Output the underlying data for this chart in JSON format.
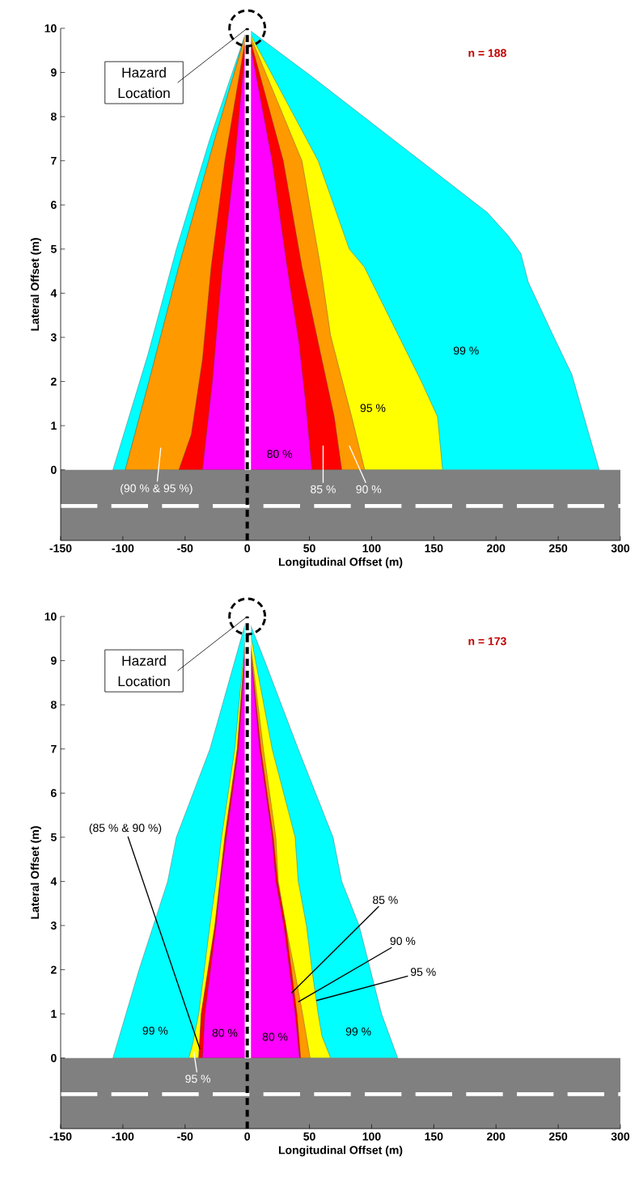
{
  "chart_data": [
    {
      "type": "area",
      "xlabel": "Longitudinal Offset (m)",
      "ylabel": "Lateral Offset (m)",
      "xlim": [
        -150,
        300
      ],
      "ylim": [
        -1.6,
        10
      ],
      "xticks": [
        -150,
        -100,
        -50,
        0,
        50,
        100,
        150,
        200,
        250,
        300
      ],
      "yticks": [
        0,
        1,
        2,
        3,
        4,
        5,
        6,
        7,
        8,
        9,
        10
      ],
      "series": [
        {
          "color": "#00ffff",
          "x": [
            -108,
            -80,
            -57,
            -30,
            0,
            50,
            100,
            150,
            193,
            210,
            220,
            226,
            245,
            261,
            283
          ],
          "values": [
            0,
            2.6,
            5,
            7.5,
            10,
            8.95,
            7.86,
            6.77,
            5.83,
            5.3,
            4.9,
            4.25,
            3.1,
            2.16,
            0
          ]
        },
        {
          "color": "#ffff00",
          "x": [
            -98,
            -79,
            -55,
            -28,
            0,
            57,
            82,
            94,
            140,
            153,
            157
          ],
          "values": [
            0,
            2,
            4.6,
            7.3,
            10,
            7,
            5,
            4.6,
            2,
            1.2,
            0
          ]
        },
        {
          "color": "#ff9900",
          "x": [
            -98,
            -79,
            -55,
            -28,
            0,
            44,
            59,
            67,
            84,
            94.5
          ],
          "values": [
            0,
            2,
            4.6,
            7.3,
            10,
            7,
            4.6,
            3.05,
            1.2,
            0
          ]
        },
        {
          "color": "#ff0000",
          "x": [
            -55,
            -45,
            -36,
            -29,
            -18,
            0,
            29,
            44,
            60,
            70,
            76
          ],
          "values": [
            0,
            0.8,
            2.5,
            4.6,
            7,
            10,
            7,
            4.6,
            2.5,
            1.2,
            0
          ]
        },
        {
          "color": "#ff00ff",
          "x": [
            -36,
            -28,
            -20,
            -10,
            0,
            20,
            32,
            41.5,
            47,
            52
          ],
          "values": [
            0,
            2,
            4.6,
            7,
            10,
            7,
            4.6,
            2.9,
            1.5,
            0
          ]
        }
      ],
      "bands": [
        {
          "axis": "x",
          "from": -2,
          "to": 3,
          "color": "#ffffff"
        },
        {
          "axis": "y",
          "from": -1.6,
          "to": 0,
          "color": "#808080"
        }
      ],
      "ref_lines": [
        {
          "axis": "y",
          "value": -0.82,
          "color": "#ffffff",
          "line_style": "dashed"
        },
        {
          "axis": "x",
          "value": 0,
          "color": "#000000",
          "line_style": "dashed"
        }
      ],
      "annotations": [
        "n = 188",
        {
          "text": "Hazard Location",
          "x": 0,
          "y": 10
        },
        "99 %",
        "95 %",
        "80 %",
        "(90 % & 95 %)",
        "85 %",
        "90 %"
      ]
    },
    {
      "type": "area",
      "xlabel": "Longitudinal Offset (m)",
      "ylabel": "Lateral Offset (m)",
      "xlim": [
        -150,
        300
      ],
      "ylim": [
        -1.6,
        10
      ],
      "xticks": [
        -150,
        -100,
        -50,
        0,
        50,
        100,
        150,
        200,
        250,
        300
      ],
      "yticks": [
        0,
        1,
        2,
        3,
        4,
        5,
        6,
        7,
        8,
        9,
        10
      ],
      "series": [
        {
          "color": "#00ffff",
          "x": [
            -108,
            -87,
            -64,
            -57,
            -30,
            0,
            14,
            41,
            69,
            76,
            90,
            108,
            121
          ],
          "values": [
            0,
            2,
            4,
            5,
            7,
            10,
            9,
            7,
            5,
            4,
            3,
            1,
            0
          ]
        },
        {
          "color": "#ffff00",
          "x": [
            -47,
            -44,
            -39,
            -30,
            -25,
            -20.6,
            -10,
            0,
            20,
            38.5,
            41,
            47.6,
            52,
            57,
            60,
            67
          ],
          "values": [
            0,
            0.3,
            1,
            3,
            4,
            5,
            7,
            10,
            7,
            5,
            4,
            3,
            2,
            1,
            0.5,
            0
          ]
        },
        {
          "color": "#ff9900",
          "x": [
            -39,
            -37,
            -26,
            -22,
            -18,
            -8,
            0,
            13,
            23,
            25,
            31,
            38,
            44.5,
            50.6
          ],
          "values": [
            0,
            1,
            3,
            4,
            5,
            7,
            10,
            7,
            5,
            4,
            3,
            2,
            1,
            0
          ]
        },
        {
          "color": "#ff0000",
          "x": [
            -39,
            -37,
            -26,
            -22,
            -18,
            -8,
            0,
            11,
            21,
            24.5,
            31,
            35.5,
            40,
            43
          ],
          "values": [
            0,
            1,
            3,
            4,
            5,
            7,
            10,
            7,
            5,
            4,
            3,
            2,
            1,
            0
          ]
        },
        {
          "color": "#ff00ff",
          "x": [
            -36,
            -34,
            -25,
            -21.5,
            -16.7,
            -7,
            0,
            10,
            20,
            23,
            29.4,
            34,
            38.5,
            42
          ],
          "values": [
            0,
            1,
            3,
            4,
            5,
            7,
            10,
            7,
            5,
            4,
            3,
            2,
            1,
            0
          ]
        }
      ],
      "bands": [
        {
          "axis": "x",
          "from": -2,
          "to": 3,
          "color": "#ffffff"
        },
        {
          "axis": "y",
          "from": -1.6,
          "to": 0,
          "color": "#808080"
        }
      ],
      "ref_lines": [
        {
          "axis": "y",
          "value": -0.82,
          "color": "#ffffff",
          "line_style": "dashed"
        },
        {
          "axis": "x",
          "value": 0,
          "color": "#000000",
          "line_style": "dashed"
        }
      ],
      "annotations": [
        "n = 173",
        {
          "text": "Hazard Location",
          "x": 0,
          "y": 10
        },
        "99 %",
        "80 %",
        "80 %",
        "99 %",
        {
          "text": "(85 % & 90 %)",
          "x": -38,
          "y": 0.2
        },
        {
          "text": "95 %",
          "x": -43,
          "y": 0.15
        },
        {
          "text": "85 %",
          "x": 35.5,
          "y": 1.47
        },
        {
          "text": "90 %",
          "x": 41,
          "y": 1.27
        },
        {
          "text": "95 %",
          "x": 55.5,
          "y": 1.3
        }
      ]
    }
  ]
}
